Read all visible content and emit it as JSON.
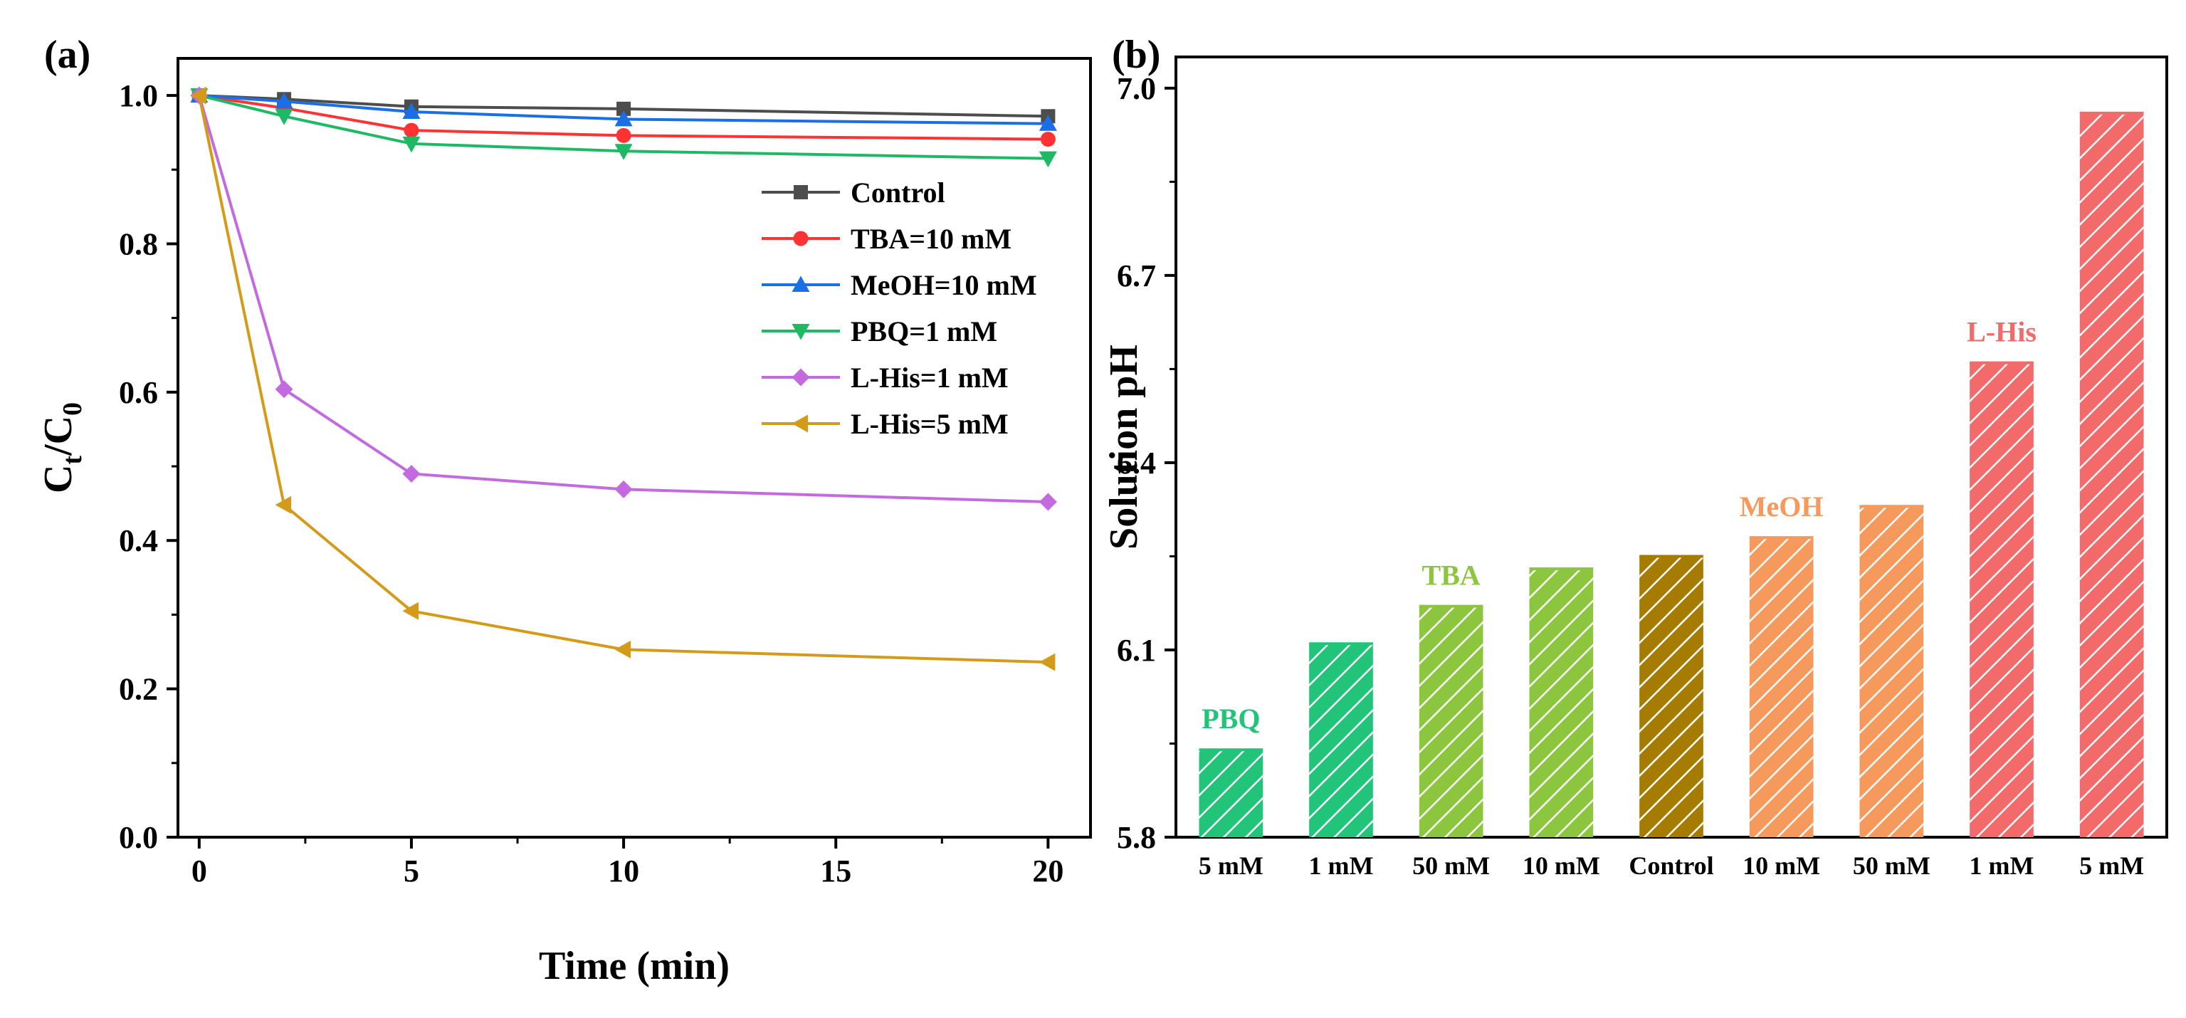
{
  "chart_data": [
    {
      "panel_label": "(a)",
      "type": "line",
      "xlabel": "Time (min)",
      "ylabel_main": "C",
      "ylabel_sub1": "t",
      "ylabel_slash": "/C",
      "ylabel_sub2": "0",
      "xlim": [
        -0.5,
        21
      ],
      "ylim": [
        0,
        1.05
      ],
      "xticks": [
        0,
        5,
        10,
        15,
        20
      ],
      "xtick_labels": [
        "0",
        "5",
        "10",
        "15",
        "20"
      ],
      "yticks": [
        0,
        0.2,
        0.4,
        0.6,
        0.8,
        1.0
      ],
      "ytick_labels": [
        "0.0",
        "0.2",
        "0.4",
        "0.6",
        "0.8",
        "1.0"
      ],
      "legend_position": "upper-right",
      "x": [
        0,
        2,
        5,
        10,
        20
      ],
      "series": [
        {
          "name": "Control",
          "color": "#4d4d4d",
          "marker": "square",
          "values": [
            1.0,
            0.995,
            0.985,
            0.982,
            0.972
          ]
        },
        {
          "name": "TBA=10 mM",
          "color": "#ff3333",
          "marker": "circle",
          "values": [
            1.0,
            0.983,
            0.953,
            0.946,
            0.941
          ]
        },
        {
          "name": "MeOH=10 mM",
          "color": "#1a6fe6",
          "marker": "triangle-up",
          "values": [
            1.0,
            0.992,
            0.978,
            0.968,
            0.962
          ]
        },
        {
          "name": "PBQ=1 mM",
          "color": "#1fb864",
          "marker": "triangle-down",
          "values": [
            1.0,
            0.972,
            0.935,
            0.925,
            0.915
          ]
        },
        {
          "name": "L-His=1 mM",
          "color": "#c36bde",
          "marker": "diamond",
          "values": [
            1.0,
            0.604,
            0.49,
            0.469,
            0.452
          ]
        },
        {
          "name": "L-His=5 mM",
          "color": "#d49a1a",
          "marker": "triangle-left",
          "values": [
            1.0,
            0.448,
            0.305,
            0.253,
            0.236
          ]
        }
      ]
    },
    {
      "panel_label": "(b)",
      "type": "bar",
      "ylabel": "Solution pH",
      "ylim": [
        5.8,
        7.05
      ],
      "yticks": [
        5.8,
        6.1,
        6.4,
        6.7,
        7.0
      ],
      "ytick_labels": [
        "5.8",
        "6.1",
        "6.4",
        "6.7",
        "7.0"
      ],
      "categories": [
        "5 mM",
        "1 mM",
        "50 mM",
        "10 mM",
        "Control",
        "10 mM",
        "50 mM",
        "1 mM",
        "5 mM"
      ],
      "values": [
        5.94,
        6.11,
        6.17,
        6.23,
        6.25,
        6.28,
        6.33,
        6.56,
        6.96
      ],
      "colors": [
        "#22c47a",
        "#22c47a",
        "#8cc63f",
        "#8cc63f",
        "#a67c00",
        "#f59a5c",
        "#f59a5c",
        "#f26a6a",
        "#f26a6a"
      ],
      "groups": [
        {
          "label": "PBQ",
          "color": "#22c47a",
          "bars": [
            0,
            1
          ]
        },
        {
          "label": "TBA",
          "color": "#8cc63f",
          "bars": [
            2,
            3
          ]
        },
        {
          "label": "MeOH",
          "color": "#f59a5c",
          "bars": [
            5,
            6
          ]
        },
        {
          "label": "L-His",
          "color": "#f26a6a",
          "bars": [
            7,
            8
          ]
        }
      ]
    }
  ]
}
